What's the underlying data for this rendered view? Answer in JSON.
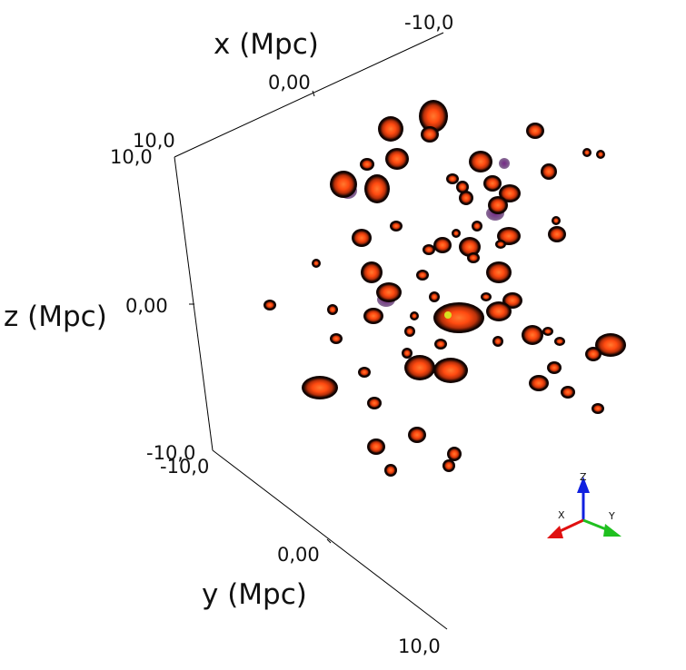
{
  "axes": {
    "x": {
      "title": "x (Mpc)",
      "ticks": {
        "min": "-10,0",
        "mid": "0,00",
        "max": "10,0"
      }
    },
    "y": {
      "title": "y (Mpc)",
      "ticks": {
        "min": "-10,0",
        "mid": "0,00",
        "max": "10,0"
      }
    },
    "z": {
      "title": "z (Mpc)",
      "ticks": {
        "min": "-10,0",
        "mid": "0,00",
        "max": "10,0"
      }
    }
  },
  "orientation_triad": {
    "x_label": "X",
    "y_label": "Y",
    "z_label": "Z"
  },
  "colors": {
    "background": "#ffffff",
    "halo_core": "#ff5a14",
    "halo_edge": "#1a0a05",
    "purple_gas": "#5a1a6a",
    "highlight": "#d8e020",
    "triad_x": "#e01010",
    "triad_y": "#20c020",
    "triad_z": "#1020e0"
  }
}
